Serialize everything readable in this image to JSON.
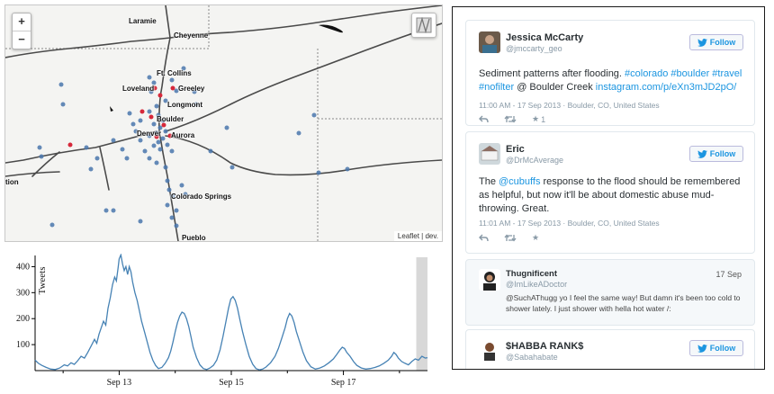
{
  "map": {
    "zoom_in": "+",
    "zoom_out": "−",
    "attribution": "Leaflet | dev.",
    "layers_icon": "layers-icon",
    "cities": [
      {
        "name": "Laramie"
      },
      {
        "name": "Cheyenne"
      },
      {
        "name": "Ft. Collins"
      },
      {
        "name": "Loveland"
      },
      {
        "name": "Greeley"
      },
      {
        "name": "Longmont"
      },
      {
        "name": "Boulder"
      },
      {
        "name": "Denver"
      },
      {
        "name": "Aurora"
      },
      {
        "name": "Colorado Springs"
      },
      {
        "name": "Pueblo"
      },
      {
        "name": "tion"
      }
    ],
    "colors": {
      "blue_point": "#4a77ad",
      "red_point": "#d6283a",
      "road": "#4a4a4a",
      "background": "#f4f4f2"
    }
  },
  "chart_data": {
    "type": "line",
    "ylabel": "Tweets",
    "xlabel": "",
    "ylim": [
      0,
      450
    ],
    "yticks": [
      100,
      200,
      300,
      400
    ],
    "xticks": [
      "Sep 13",
      "Sep 15",
      "Sep 17"
    ],
    "xrange_days": [
      11.5,
      18.5
    ],
    "xtick_days": [
      13,
      15,
      17
    ],
    "brush_days": [
      18.3,
      18.5
    ],
    "series": [
      {
        "color": "#4682b4",
        "points": [
          [
            11.5,
            40
          ],
          [
            11.56,
            28
          ],
          [
            11.62,
            20
          ],
          [
            11.7,
            12
          ],
          [
            11.78,
            6
          ],
          [
            11.86,
            4
          ],
          [
            11.94,
            10
          ],
          [
            12.02,
            22
          ],
          [
            12.08,
            18
          ],
          [
            12.14,
            30
          ],
          [
            12.2,
            24
          ],
          [
            12.26,
            38
          ],
          [
            12.32,
            55
          ],
          [
            12.38,
            48
          ],
          [
            12.44,
            70
          ],
          [
            12.5,
            95
          ],
          [
            12.56,
            120
          ],
          [
            12.6,
            105
          ],
          [
            12.64,
            140
          ],
          [
            12.68,
            165
          ],
          [
            12.72,
            190
          ],
          [
            12.76,
            175
          ],
          [
            12.8,
            240
          ],
          [
            12.84,
            280
          ],
          [
            12.88,
            330
          ],
          [
            12.92,
            360
          ],
          [
            12.95,
            345
          ],
          [
            12.98,
            395
          ],
          [
            13.0,
            430
          ],
          [
            13.03,
            445
          ],
          [
            13.06,
            410
          ],
          [
            13.09,
            385
          ],
          [
            13.12,
            400
          ],
          [
            13.15,
            370
          ],
          [
            13.18,
            400
          ],
          [
            13.21,
            380
          ],
          [
            13.24,
            340
          ],
          [
            13.28,
            300
          ],
          [
            13.32,
            270
          ],
          [
            13.36,
            230
          ],
          [
            13.4,
            190
          ],
          [
            13.45,
            150
          ],
          [
            13.5,
            110
          ],
          [
            13.55,
            70
          ],
          [
            13.6,
            40
          ],
          [
            13.65,
            20
          ],
          [
            13.7,
            8
          ],
          [
            13.76,
            12
          ],
          [
            13.82,
            28
          ],
          [
            13.88,
            50
          ],
          [
            13.92,
            75
          ],
          [
            13.96,
            110
          ],
          [
            14.0,
            150
          ],
          [
            14.04,
            185
          ],
          [
            14.08,
            210
          ],
          [
            14.12,
            225
          ],
          [
            14.16,
            220
          ],
          [
            14.2,
            200
          ],
          [
            14.24,
            170
          ],
          [
            14.28,
            130
          ],
          [
            14.32,
            90
          ],
          [
            14.38,
            50
          ],
          [
            14.44,
            22
          ],
          [
            14.5,
            8
          ],
          [
            14.56,
            4
          ],
          [
            14.62,
            10
          ],
          [
            14.68,
            20
          ],
          [
            14.74,
            40
          ],
          [
            14.8,
            80
          ],
          [
            14.85,
            130
          ],
          [
            14.9,
            185
          ],
          [
            14.95,
            240
          ],
          [
            14.99,
            275
          ],
          [
            15.03,
            285
          ],
          [
            15.07,
            270
          ],
          [
            15.11,
            240
          ],
          [
            15.15,
            200
          ],
          [
            15.2,
            150
          ],
          [
            15.26,
            100
          ],
          [
            15.32,
            55
          ],
          [
            15.38,
            25
          ],
          [
            15.44,
            8
          ],
          [
            15.5,
            3
          ],
          [
            15.56,
            6
          ],
          [
            15.62,
            14
          ],
          [
            15.7,
            30
          ],
          [
            15.78,
            55
          ],
          [
            15.84,
            85
          ],
          [
            15.9,
            125
          ],
          [
            15.96,
            165
          ],
          [
            16.0,
            200
          ],
          [
            16.04,
            220
          ],
          [
            16.08,
            210
          ],
          [
            16.12,
            185
          ],
          [
            16.16,
            150
          ],
          [
            16.22,
            110
          ],
          [
            16.28,
            70
          ],
          [
            16.34,
            38
          ],
          [
            16.42,
            15
          ],
          [
            16.5,
            6
          ],
          [
            16.58,
            10
          ],
          [
            16.66,
            18
          ],
          [
            16.74,
            30
          ],
          [
            16.82,
            45
          ],
          [
            16.88,
            62
          ],
          [
            16.94,
            80
          ],
          [
            16.98,
            90
          ],
          [
            17.02,
            85
          ],
          [
            17.06,
            70
          ],
          [
            17.12,
            55
          ],
          [
            17.18,
            35
          ],
          [
            17.24,
            20
          ],
          [
            17.32,
            10
          ],
          [
            17.4,
            6
          ],
          [
            17.48,
            8
          ],
          [
            17.56,
            12
          ],
          [
            17.64,
            18
          ],
          [
            17.72,
            28
          ],
          [
            17.8,
            40
          ],
          [
            17.86,
            55
          ],
          [
            17.9,
            70
          ],
          [
            17.94,
            62
          ],
          [
            17.98,
            48
          ],
          [
            18.04,
            35
          ],
          [
            18.1,
            28
          ],
          [
            18.16,
            22
          ],
          [
            18.22,
            35
          ],
          [
            18.28,
            45
          ],
          [
            18.34,
            40
          ],
          [
            18.4,
            55
          ],
          [
            18.46,
            48
          ],
          [
            18.5,
            50
          ]
        ]
      }
    ]
  },
  "tweets": [
    {
      "name": "Jessica McCarty",
      "handle": "@jmccarty_geo",
      "follow_label": "Follow",
      "text_plain": "Sediment patterns after flooding. ",
      "hashtags1": "#colorado #boulder #travel",
      "hashtags2": "#nofilter",
      "text_mid": " @ Boulder Creek ",
      "link": "instagram.com/p/eXn3mJD2pO/",
      "meta": "11:00 AM - 17 Sep 2013 · Boulder, CO, United States",
      "fav_count": "1"
    },
    {
      "name": "Eric",
      "handle": "@DrMcAverage",
      "follow_label": "Follow",
      "text_pre": "The ",
      "mention": "@cubuffs",
      "text_post": " response to the flood should be remembered as helpful, but now it'll be about domestic abuse mud-throwing. Great.",
      "meta": "11:01 AM - 17 Sep 2013 · Boulder, CO, United States"
    },
    {
      "name": "Thugnificent",
      "handle": "@ImLikeADoctor",
      "date": "17 Sep",
      "text": "@SuchAThugg yo I feel the same way! But damn it's been too cold to shower lately. I just shower with hella hot water /:"
    },
    {
      "name": "$HABBA RANK$",
      "handle": "@Sabahabate",
      "follow_label": "Follow"
    }
  ]
}
